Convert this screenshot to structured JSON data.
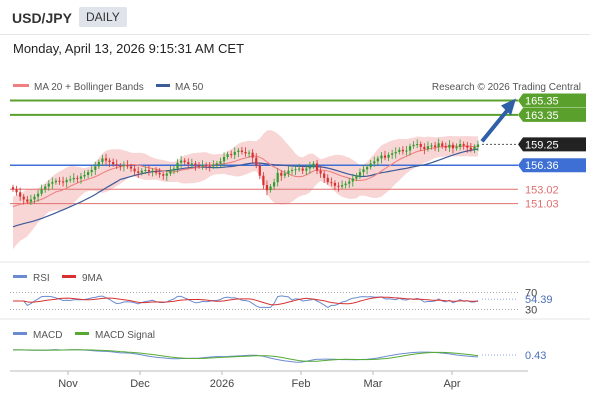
{
  "header": {
    "symbol": "USD/JPY",
    "timeframe": "DAILY",
    "datetime": "Monday, April 13, 2026 9:15:31 AM CET"
  },
  "legend": {
    "ma20_label": "MA 20 + Bollinger Bands",
    "ma50_label": "MA 50",
    "credit": "Research © 2026 Trading Central",
    "rsi_label": "RSI",
    "rsi_ma_label": "9MA",
    "macd_label": "MACD",
    "macd_signal_label": "MACD Signal"
  },
  "colors": {
    "bollinger_band": "#f7c8c8",
    "ma20": "#f08080",
    "ma50": "#3d5a99",
    "resistance": "#5aa02c",
    "support": "#e07070",
    "pivot": "#3d6fd4",
    "last_price": "#222222",
    "arrow": "#2f5fa8",
    "rsi": "#6a8bd0",
    "rsi_ma": "#d83030",
    "macd": "#6a8bd0",
    "macd_signal": "#55aa33",
    "candle_up": "#2e9e2e",
    "candle_down": "#d83030"
  },
  "chart_data": {
    "type": "candlestick",
    "title": "USD/JPY",
    "timeframe": "DAILY",
    "x_ticks": [
      "Nov",
      "Dec",
      "2026",
      "Feb",
      "Mar",
      "Apr"
    ],
    "levels": [
      {
        "name": "resistance-2",
        "value": 165.35,
        "label": "165.35",
        "kind": "resistance"
      },
      {
        "name": "resistance-1",
        "value": 163.35,
        "label": "163.35",
        "kind": "resistance"
      },
      {
        "name": "last",
        "value": 159.25,
        "label": "159.25",
        "kind": "last"
      },
      {
        "name": "pivot",
        "value": 156.36,
        "label": "156.36",
        "kind": "pivot"
      },
      {
        "name": "support-1",
        "value": 153.02,
        "label": "153.02",
        "kind": "support"
      },
      {
        "name": "support-2",
        "value": 151.03,
        "label": "151.03",
        "kind": "support"
      }
    ],
    "price_range": [
      142.5,
      167.5
    ],
    "closes": [
      153.0,
      152.6,
      152.0,
      151.6,
      151.3,
      151.6,
      152.0,
      152.4,
      153.0,
      153.4,
      153.8,
      154.0,
      154.2,
      154.1,
      154.0,
      154.3,
      154.4,
      154.6,
      154.5,
      154.8,
      155.0,
      155.4,
      155.7,
      156.2,
      156.8,
      157.3,
      157.0,
      156.8,
      156.5,
      156.3,
      156.2,
      156.4,
      156.2,
      155.9,
      155.5,
      155.3,
      155.6,
      155.7,
      155.5,
      155.6,
      155.3,
      155.1,
      154.9,
      155.2,
      155.6,
      155.9,
      156.7,
      157.0,
      156.8,
      156.5,
      156.6,
      156.3,
      156.2,
      156.4,
      156.3,
      156.2,
      156.4,
      156.6,
      156.9,
      157.5,
      157.9,
      157.8,
      158.2,
      158.4,
      158.2,
      158.0,
      158.1,
      157.4,
      156.3,
      154.9,
      153.6,
      152.9,
      153.4,
      154.0,
      155.3,
      154.9,
      155.2,
      155.6,
      155.7,
      155.8,
      155.9,
      155.6,
      155.9,
      156.2,
      156.6,
      155.6,
      155.2,
      154.6,
      154.0,
      153.9,
      153.5,
      153.4,
      153.6,
      153.8,
      154.1,
      154.5,
      154.9,
      155.4,
      155.8,
      156.1,
      156.6,
      156.9,
      157.3,
      157.7,
      157.4,
      157.8,
      158.0,
      158.2,
      158.5,
      158.3,
      158.4,
      159.0,
      159.2,
      159.3,
      158.9,
      158.6,
      159.0,
      159.1,
      158.9,
      159.4,
      159.0,
      158.8,
      159.2,
      158.7,
      158.9,
      159.3,
      159.1,
      158.8,
      158.5,
      158.9,
      159.25
    ],
    "ma20_range": [
      150.6,
      159.1
    ],
    "ma50_range": [
      147.8,
      157.2
    ],
    "rsi": {
      "name": "RSI",
      "ma_name": "9MA",
      "levels": [
        70,
        30
      ],
      "ticks": [
        "70",
        "30"
      ],
      "last": 54.39,
      "last_label": "54.39"
    },
    "macd": {
      "name": "MACD",
      "signal_name": "MACD Signal",
      "last": 0.43,
      "last_label": "0.43"
    },
    "forecast": {
      "from": 159.25,
      "to": 165.35,
      "direction": "up"
    }
  }
}
